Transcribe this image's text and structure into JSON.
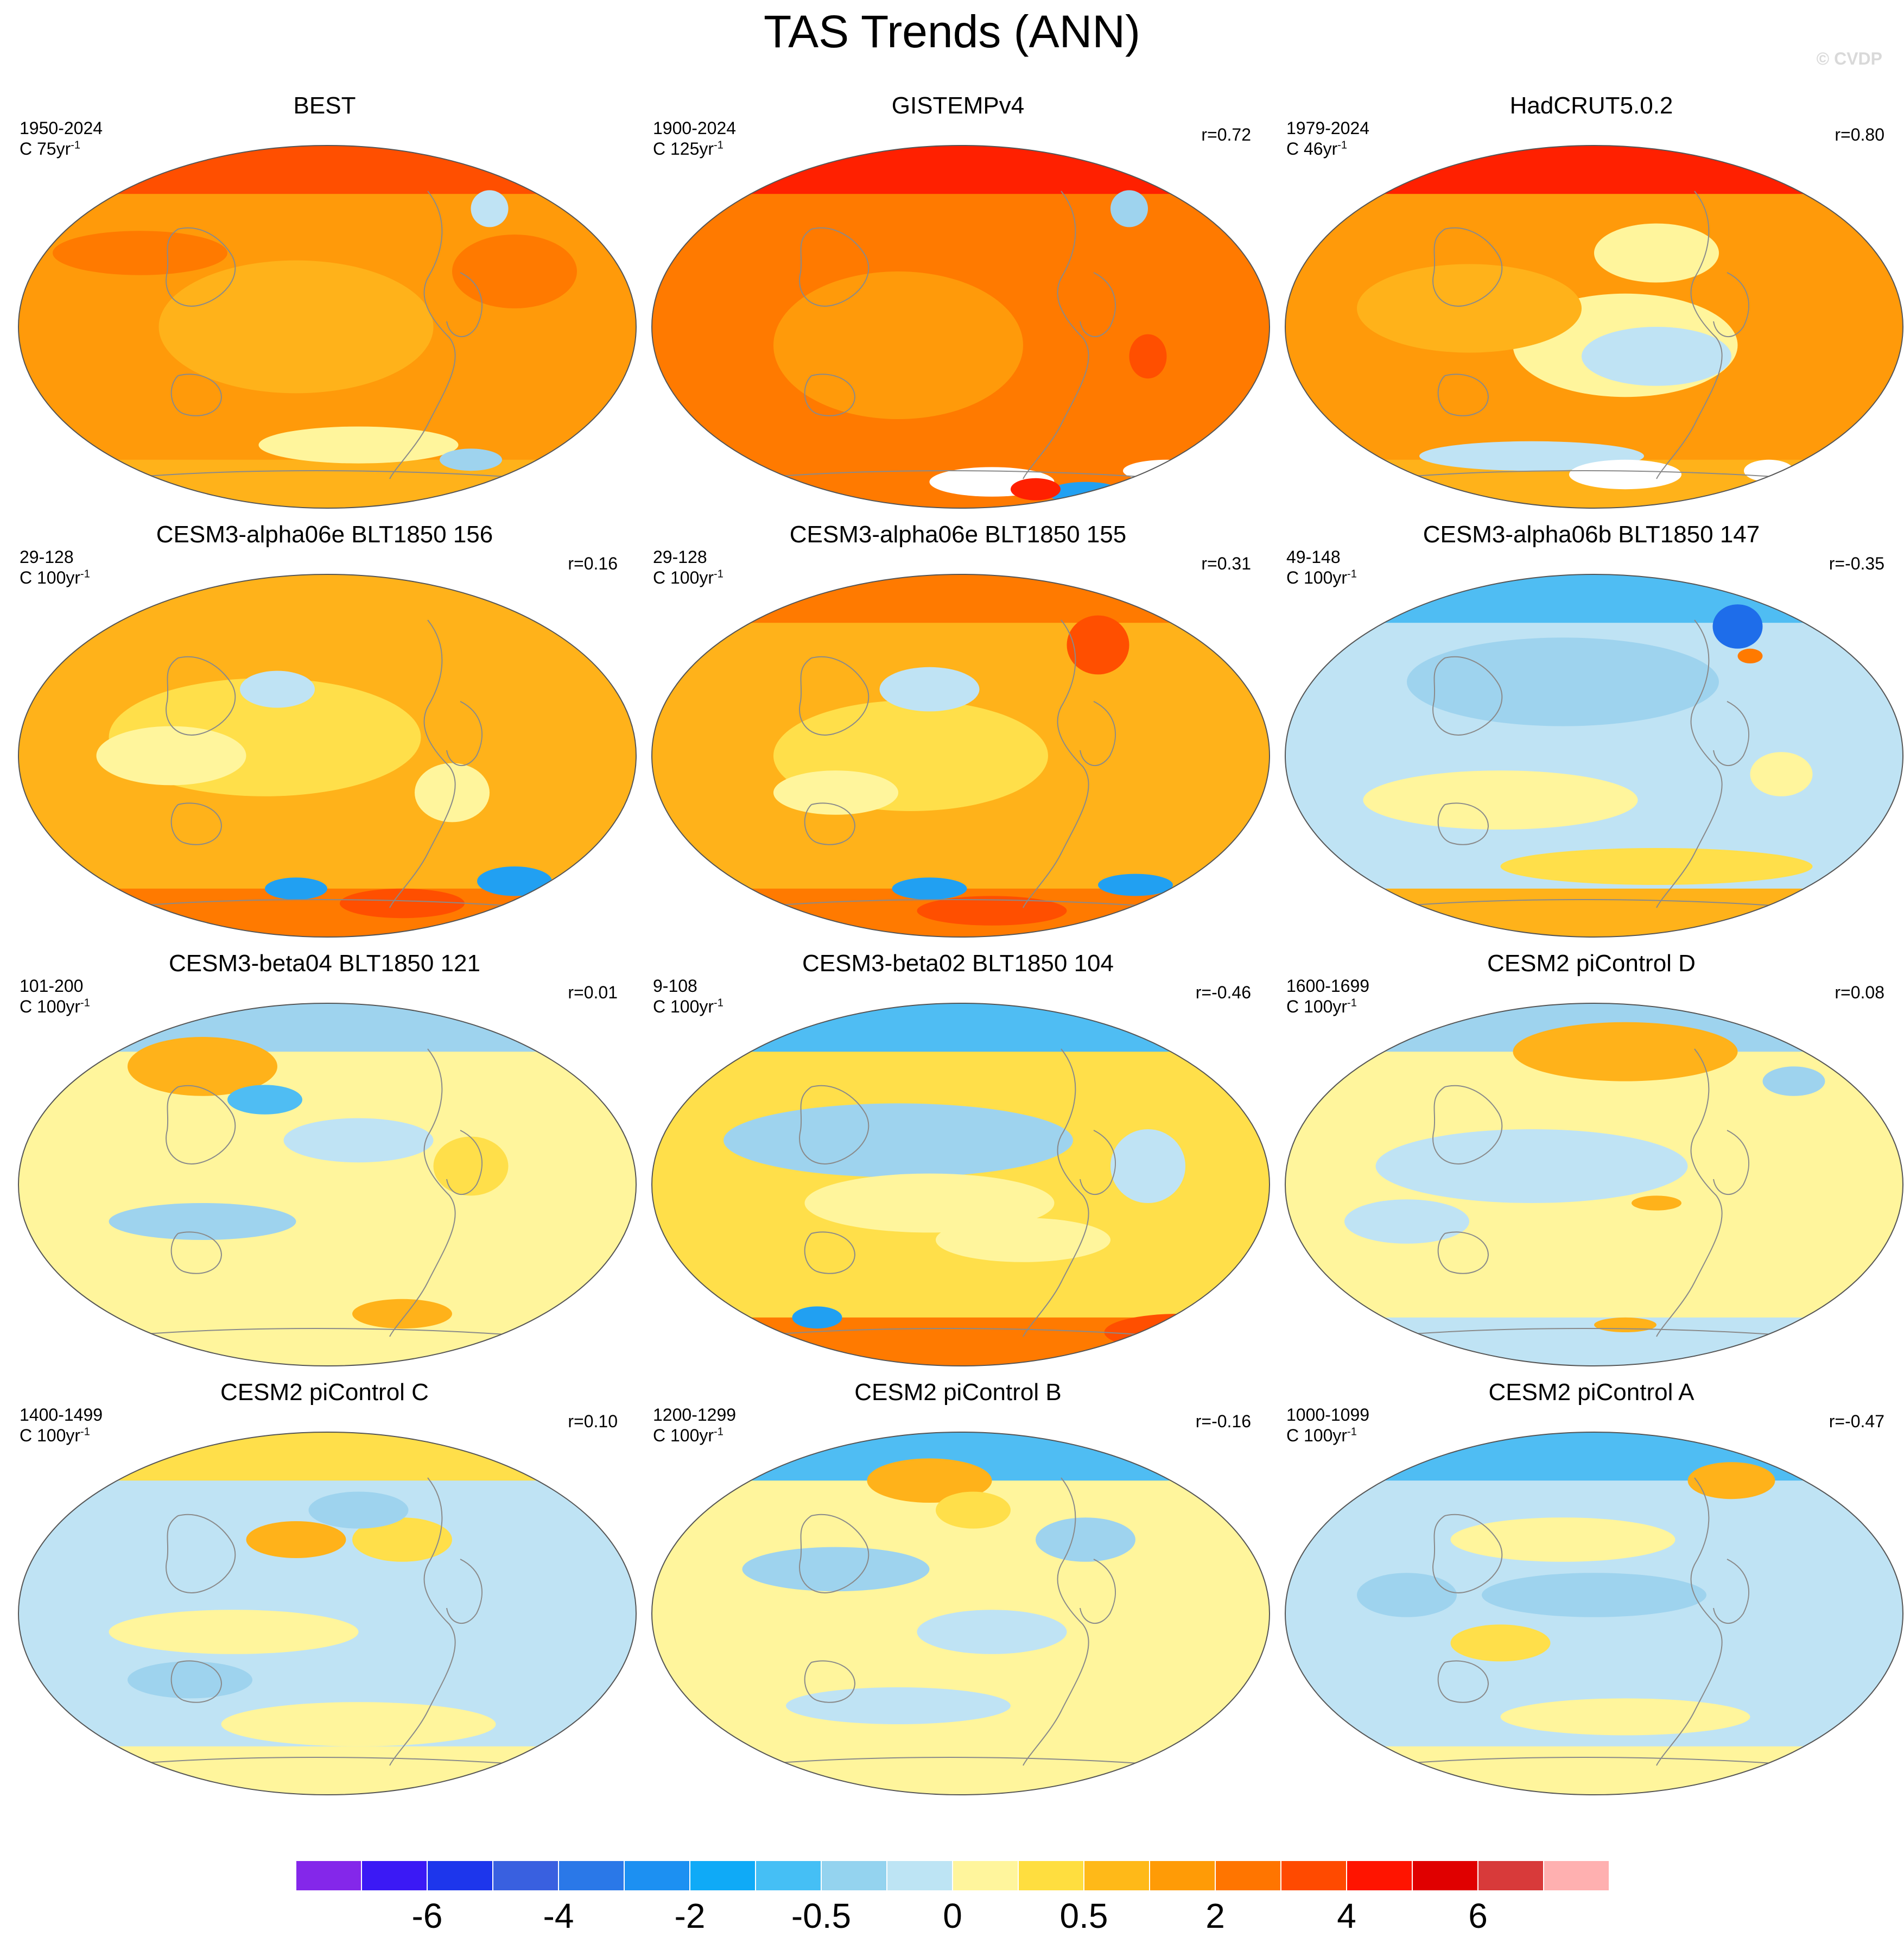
{
  "title": "TAS Trends (ANN)",
  "watermark": "© CVDP",
  "palette": {
    "c_m4": "#1e6dea",
    "c_m2": "#21a0f2",
    "c_m05": "#4fbdf3",
    "c_m01": "#9ed3ee",
    "c_m0": "#bfe3f4",
    "c_p0": "#fff59c",
    "c_p01": "#ffdf4a",
    "c_p05": "#ffb21a",
    "c_p1": "#ff9a0a",
    "c_p2": "#ff7a00",
    "c_p3": "#ff4f00",
    "c_p4": "#ff2000",
    "white": "#ffffff"
  },
  "colorbar": {
    "colors": [
      "#8427ea",
      "#3b19f5",
      "#1d36ec",
      "#3960e0",
      "#2a78e8",
      "#1c90f2",
      "#0faaf7",
      "#45bff5",
      "#94d3ef",
      "#bde4f4",
      "#fff59c",
      "#ffde3f",
      "#ffb918",
      "#ff9b06",
      "#ff7500",
      "#ff4a00",
      "#ff1400",
      "#e00000",
      "#d83a3a",
      "#ffb0b0"
    ],
    "labels": [
      "-6",
      "-4",
      "-2",
      "-0.5",
      "0",
      "0.5",
      "2",
      "4",
      "6"
    ]
  },
  "panels": [
    {
      "title": "BEST",
      "period": "1950-2024",
      "units": "C 75yr",
      "sup": "-1",
      "r": "",
      "base": "c_p1",
      "north": "c_p3",
      "south": "c_p05",
      "blobs": [
        [
          "c_p05",
          0.45,
          0.5,
          0.22,
          0.18
        ],
        [
          "c_p2",
          0.8,
          0.35,
          0.1,
          0.1
        ],
        [
          "c_p0",
          0.55,
          0.82,
          0.16,
          0.05
        ],
        [
          "c_m01",
          0.73,
          0.86,
          0.05,
          0.03
        ],
        [
          "c_m0",
          0.76,
          0.18,
          0.03,
          0.05
        ],
        [
          "c_p2",
          0.2,
          0.3,
          0.14,
          0.06
        ]
      ]
    },
    {
      "title": "GISTEMPv4",
      "period": "1900-2024",
      "units": "C 125yr",
      "sup": "-1",
      "r": "r=0.72",
      "base": "c_p2",
      "north": "c_p4",
      "south": "c_p2",
      "blobs": [
        [
          "c_p1",
          0.4,
          0.55,
          0.2,
          0.2
        ],
        [
          "c_m01",
          0.77,
          0.18,
          0.03,
          0.05
        ],
        [
          "white",
          0.55,
          0.92,
          0.1,
          0.04
        ],
        [
          "white",
          0.83,
          0.89,
          0.07,
          0.03
        ],
        [
          "c_m2",
          0.7,
          0.95,
          0.06,
          0.03
        ],
        [
          "c_p4",
          0.62,
          0.94,
          0.04,
          0.03
        ],
        [
          "c_p3",
          0.8,
          0.58,
          0.03,
          0.06
        ]
      ]
    },
    {
      "title": "HadCRUT5.0.2",
      "period": "1979-2024",
      "units": "C 46yr",
      "sup": "-1",
      "r": "r=0.80",
      "base": "c_p1",
      "north": "c_p4",
      "south": "c_p05",
      "blobs": [
        [
          "c_p0",
          0.55,
          0.55,
          0.18,
          0.14
        ],
        [
          "c_m0",
          0.6,
          0.58,
          0.12,
          0.08
        ],
        [
          "c_p05",
          0.3,
          0.45,
          0.18,
          0.12
        ],
        [
          "c_m0",
          0.4,
          0.85,
          0.18,
          0.04
        ],
        [
          "white",
          0.55,
          0.9,
          0.09,
          0.04
        ],
        [
          "white",
          0.78,
          0.89,
          0.04,
          0.03
        ],
        [
          "c_p0",
          0.6,
          0.3,
          0.1,
          0.08
        ]
      ]
    },
    {
      "title": "CESM3-alpha06e BLT1850 156",
      "period": "29-128",
      "units": "C 100yr",
      "sup": "-1",
      "r": "r=0.16",
      "base": "c_p05",
      "north": "c_p05",
      "south": "c_p2",
      "blobs": [
        [
          "c_p01",
          0.4,
          0.45,
          0.25,
          0.16
        ],
        [
          "c_m0",
          0.42,
          0.32,
          0.06,
          0.05
        ],
        [
          "c_p0",
          0.25,
          0.5,
          0.12,
          0.08
        ],
        [
          "c_m2",
          0.45,
          0.86,
          0.05,
          0.03
        ],
        [
          "c_m2",
          0.8,
          0.84,
          0.06,
          0.04
        ],
        [
          "c_p3",
          0.62,
          0.9,
          0.1,
          0.04
        ],
        [
          "c_p0",
          0.7,
          0.6,
          0.06,
          0.08
        ]
      ]
    },
    {
      "title": "CESM3-alpha06e BLT1850 155",
      "period": "29-128",
      "units": "C 100yr",
      "sup": "-1",
      "r": "r=0.31",
      "base": "c_p05",
      "north": "c_p2",
      "south": "c_p2",
      "blobs": [
        [
          "c_p01",
          0.42,
          0.5,
          0.22,
          0.15
        ],
        [
          "c_m0",
          0.45,
          0.32,
          0.08,
          0.06
        ],
        [
          "c_p0",
          0.3,
          0.6,
          0.1,
          0.06
        ],
        [
          "c_m2",
          0.45,
          0.86,
          0.06,
          0.03
        ],
        [
          "c_m2",
          0.78,
          0.85,
          0.06,
          0.03
        ],
        [
          "c_p3",
          0.55,
          0.92,
          0.12,
          0.04
        ],
        [
          "c_p3",
          0.72,
          0.2,
          0.05,
          0.08
        ]
      ]
    },
    {
      "title": "CESM3-alpha06b BLT1850 147",
      "period": "49-148",
      "units": "C 100yr",
      "sup": "-1",
      "r": "r=-0.35",
      "base": "c_m0",
      "north": "c_m05",
      "south": "c_p05",
      "blobs": [
        [
          "c_m01",
          0.45,
          0.3,
          0.25,
          0.12
        ],
        [
          "c_p0",
          0.35,
          0.62,
          0.22,
          0.08
        ],
        [
          "c_m4",
          0.73,
          0.15,
          0.04,
          0.06
        ],
        [
          "c_p2",
          0.75,
          0.23,
          0.02,
          0.02
        ],
        [
          "c_p01",
          0.6,
          0.8,
          0.25,
          0.05
        ],
        [
          "c_p0",
          0.8,
          0.55,
          0.05,
          0.06
        ]
      ]
    },
    {
      "title": "CESM3-beta04 BLT1850 121",
      "period": "101-200",
      "units": "C 100yr",
      "sup": "-1",
      "r": "r=0.01",
      "base": "c_p0",
      "north": "c_m01",
      "south": "c_p0",
      "blobs": [
        [
          "c_p05",
          0.3,
          0.18,
          0.12,
          0.08
        ],
        [
          "c_m05",
          0.4,
          0.27,
          0.06,
          0.04
        ],
        [
          "c_m0",
          0.55,
          0.38,
          0.12,
          0.06
        ],
        [
          "c_p01",
          0.73,
          0.45,
          0.06,
          0.08
        ],
        [
          "c_p05",
          0.62,
          0.85,
          0.08,
          0.04
        ],
        [
          "c_m01",
          0.3,
          0.6,
          0.15,
          0.05
        ]
      ]
    },
    {
      "title": "CESM3-beta02 BLT1850 104",
      "period": "9-108",
      "units": "C 100yr",
      "sup": "-1",
      "r": "r=-0.46",
      "base": "c_p01",
      "north": "c_m05",
      "south": "c_p2",
      "blobs": [
        [
          "c_m01",
          0.4,
          0.38,
          0.28,
          0.1
        ],
        [
          "c_p0",
          0.45,
          0.55,
          0.2,
          0.08
        ],
        [
          "c_m0",
          0.8,
          0.45,
          0.06,
          0.1
        ],
        [
          "c_m2",
          0.27,
          0.86,
          0.04,
          0.03
        ],
        [
          "c_p3",
          0.85,
          0.9,
          0.12,
          0.05
        ],
        [
          "c_p0",
          0.6,
          0.65,
          0.14,
          0.06
        ]
      ]
    },
    {
      "title": "CESM2 piControl D",
      "period": "1600-1699",
      "units": "C 100yr",
      "sup": "-1",
      "r": "r=0.08",
      "base": "c_p0",
      "north": "c_m01",
      "south": "c_m0",
      "blobs": [
        [
          "c_p05",
          0.55,
          0.14,
          0.18,
          0.08
        ],
        [
          "c_m0",
          0.4,
          0.45,
          0.25,
          0.1
        ],
        [
          "c_m01",
          0.82,
          0.22,
          0.05,
          0.04
        ],
        [
          "c_p05",
          0.6,
          0.55,
          0.04,
          0.02
        ],
        [
          "c_p05",
          0.55,
          0.88,
          0.05,
          0.02
        ],
        [
          "c_m0",
          0.2,
          0.6,
          0.1,
          0.06
        ]
      ]
    },
    {
      "title": "CESM2 piControl C",
      "period": "1400-1499",
      "units": "C 100yr",
      "sup": "-1",
      "r": "r=0.10",
      "base": "c_m0",
      "north": "c_p01",
      "south": "c_p0",
      "blobs": [
        [
          "c_p05",
          0.45,
          0.3,
          0.08,
          0.05
        ],
        [
          "c_p01",
          0.62,
          0.3,
          0.08,
          0.06
        ],
        [
          "c_m01",
          0.55,
          0.22,
          0.08,
          0.05
        ],
        [
          "c_p0",
          0.35,
          0.55,
          0.2,
          0.06
        ],
        [
          "c_m01",
          0.28,
          0.68,
          0.1,
          0.05
        ],
        [
          "c_p0",
          0.55,
          0.8,
          0.22,
          0.06
        ]
      ]
    },
    {
      "title": "CESM2 piControl B",
      "period": "1200-1299",
      "units": "C 100yr",
      "sup": "-1",
      "r": "r=-0.16",
      "base": "c_p0",
      "north": "c_m05",
      "south": "c_p0",
      "blobs": [
        [
          "c_p05",
          0.45,
          0.14,
          0.1,
          0.06
        ],
        [
          "c_p01",
          0.52,
          0.22,
          0.06,
          0.05
        ],
        [
          "c_m01",
          0.3,
          0.38,
          0.15,
          0.06
        ],
        [
          "c_m0",
          0.55,
          0.55,
          0.12,
          0.06
        ],
        [
          "c_m0",
          0.4,
          0.75,
          0.18,
          0.05
        ],
        [
          "c_m01",
          0.7,
          0.3,
          0.08,
          0.06
        ]
      ]
    },
    {
      "title": "CESM2 piControl A",
      "period": "1000-1099",
      "units": "C 100yr",
      "sup": "-1",
      "r": "r=-0.47",
      "base": "c_m0",
      "north": "c_m05",
      "south": "c_p0",
      "blobs": [
        [
          "c_p05",
          0.72,
          0.14,
          0.07,
          0.05
        ],
        [
          "c_m01",
          0.5,
          0.45,
          0.18,
          0.06
        ],
        [
          "c_p0",
          0.45,
          0.3,
          0.18,
          0.06
        ],
        [
          "c_p01",
          0.35,
          0.58,
          0.08,
          0.05
        ],
        [
          "c_m01",
          0.2,
          0.45,
          0.08,
          0.06
        ],
        [
          "c_p0",
          0.55,
          0.78,
          0.2,
          0.05
        ]
      ]
    }
  ]
}
